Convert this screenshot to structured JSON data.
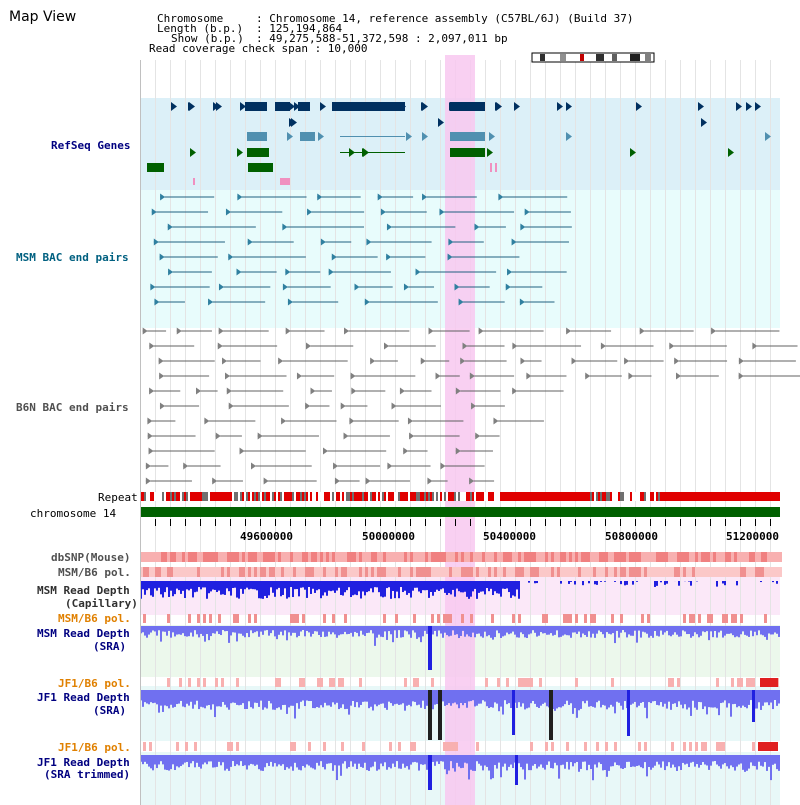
{
  "page": {
    "title": "Map View",
    "chromosome_key": "Chromosome",
    "chromosome_value": ": Chromosome 14, reference assembly (C57BL/6J) (Build 37)",
    "length_key": "Length (b.p.)",
    "length_value": ": 125,194,864",
    "show_key": "Show (b.p.)",
    "show_value": ": 49,275,588-51,372,598 : 2,097,011 bp",
    "coverage_text": "Read coverage check span : 10,000"
  },
  "tracks": {
    "refseq": "RefSeq Genes",
    "msm_bac": "MSM BAC end pairs",
    "b6n_bac": "B6N BAC end pairs",
    "repeat": "Repeat",
    "chromosome": "chromosome 14",
    "dbsnp": "dbSNP(Mouse)",
    "msm_b6_pol": "MSM/B6 pol.",
    "msm_read_depth_cap_1": "MSM Read Depth",
    "msm_read_depth_cap_2": "(Capillary)",
    "msm_b6_pol_2": "MSM/B6 pol.",
    "msm_read_depth_sra_1": "MSM Read Depth",
    "msm_read_depth_sra_2": "(SRA)",
    "jf1_b6_pol": "JF1/B6 pol.",
    "jf1_read_depth_1": "JF1 Read Depth",
    "jf1_read_depth_2": "(SRA)",
    "jf1_b6_pol_2": "JF1/B6 pol.",
    "jf1_trim_1": "JF1 Read Depth",
    "jf1_trim_2": "(SRA trimmed)"
  },
  "axis": {
    "ticks": [
      "49600000",
      "50000000",
      "50400000",
      "50800000",
      "51200000"
    ]
  },
  "colors": {
    "refseq_bg": "#dcf0f8",
    "bac_bg": "#e8fcfc",
    "highlight": "#f8c8f0",
    "gene_navy": "#003060",
    "gene_teal": "#5090b0",
    "gene_green": "#006000",
    "chromosome_bar": "#006000",
    "depth_blue": "#2020e0",
    "depth_light": "#7070f0",
    "pol_red": "#f06060"
  }
}
